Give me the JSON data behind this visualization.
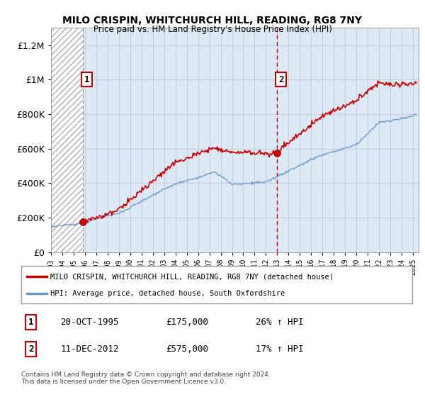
{
  "title": "MILO CRISPIN, WHITCHURCH HILL, READING, RG8 7NY",
  "subtitle": "Price paid vs. HM Land Registry's House Price Index (HPI)",
  "ylim": [
    0,
    1300000
  ],
  "yticks": [
    0,
    200000,
    400000,
    600000,
    800000,
    1000000,
    1200000
  ],
  "ytick_labels": [
    "£0",
    "£200K",
    "£400K",
    "£600K",
    "£800K",
    "£1M",
    "£1.2M"
  ],
  "sale1": {
    "date_num": 1995.8,
    "price": 175000,
    "label": "1",
    "date_str": "20-OCT-1995",
    "pct": "26% ↑ HPI"
  },
  "sale2": {
    "date_num": 2012.95,
    "price": 575000,
    "label": "2",
    "date_str": "11-DEC-2012",
    "pct": "17% ↑ HPI"
  },
  "legend_line1": "MILO CRISPIN, WHITCHURCH HILL, READING, RG8 7NY (detached house)",
  "legend_line2": "HPI: Average price, detached house, South Oxfordshire",
  "footer": "Contains HM Land Registry data © Crown copyright and database right 2024.\nThis data is licensed under the Open Government Licence v3.0.",
  "sale_line_color": "#cc0000",
  "hpi_line_color": "#6699cc",
  "plot_bg_color": "#dce9f5",
  "hatch_color": "#bbbbbb",
  "grid_color": "#aaaacc",
  "dashed_line_color_sale1": "#888888",
  "dashed_line_color_sale2": "#cc0000",
  "background_color": "#ffffff",
  "xlim_start": 1993,
  "xlim_end": 2025.5,
  "xticks": [
    1993,
    1994,
    1995,
    1996,
    1997,
    1998,
    1999,
    2000,
    2001,
    2002,
    2003,
    2004,
    2005,
    2006,
    2007,
    2008,
    2009,
    2010,
    2011,
    2012,
    2013,
    2014,
    2015,
    2016,
    2017,
    2018,
    2019,
    2020,
    2021,
    2022,
    2023,
    2024,
    2025
  ]
}
